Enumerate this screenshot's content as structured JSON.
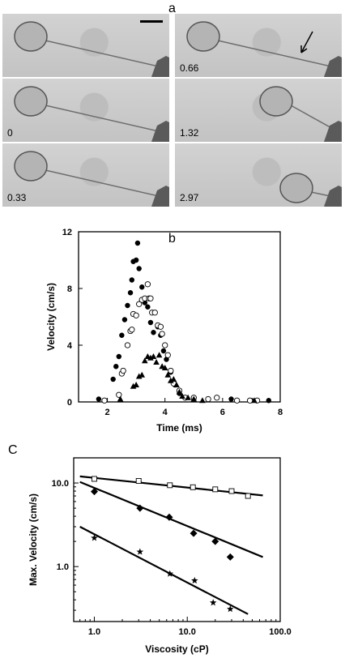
{
  "panel_a": {
    "label": "a",
    "frames_left": [
      "",
      "0",
      "0.33"
    ],
    "frames_right": [
      "0.66",
      "1.32",
      "2.97"
    ]
  },
  "panel_b": {
    "label": "b"
  },
  "panel_c": {
    "label": "C"
  },
  "chart_data": [
    {
      "type": "scatter",
      "title": "",
      "xlabel": "Time (ms)",
      "ylabel": "Velocity (cm/s)",
      "xlim": [
        1,
        8
      ],
      "ylim": [
        0,
        12
      ],
      "xticks": [
        2,
        4,
        6,
        8
      ],
      "yticks": [
        0,
        4,
        8,
        12
      ],
      "grid": false,
      "series": [
        {
          "marker": "filled-circle",
          "points": [
            [
              1.7,
              0.2
            ],
            [
              2.2,
              1.6
            ],
            [
              2.3,
              2.5
            ],
            [
              2.4,
              3.2
            ],
            [
              2.5,
              4.7
            ],
            [
              2.6,
              5.8
            ],
            [
              2.7,
              6.8
            ],
            [
              2.8,
              7.7
            ],
            [
              2.85,
              8.6
            ],
            [
              2.9,
              9.9
            ],
            [
              3.0,
              10.0
            ],
            [
              3.05,
              11.2
            ],
            [
              3.1,
              9.4
            ],
            [
              3.2,
              8.1
            ],
            [
              3.3,
              7.0
            ],
            [
              3.4,
              6.7
            ],
            [
              3.5,
              5.6
            ],
            [
              3.6,
              4.9
            ],
            [
              3.75,
              5.3
            ],
            [
              3.85,
              4.7
            ],
            [
              3.95,
              3.6
            ],
            [
              4.05,
              3.0
            ],
            [
              4.2,
              2.1
            ],
            [
              4.35,
              1.2
            ],
            [
              4.5,
              0.6
            ],
            [
              4.7,
              0.3
            ],
            [
              5.0,
              0.2
            ],
            [
              5.5,
              0.2
            ],
            [
              6.3,
              0.2
            ],
            [
              7.0,
              0.1
            ],
            [
              7.6,
              0.1
            ]
          ]
        },
        {
          "marker": "open-circle",
          "points": [
            [
              1.9,
              0.1
            ],
            [
              2.4,
              0.5
            ],
            [
              2.5,
              2.0
            ],
            [
              2.55,
              2.2
            ],
            [
              2.7,
              4.0
            ],
            [
              2.8,
              5.0
            ],
            [
              2.85,
              5.1
            ],
            [
              2.9,
              6.2
            ],
            [
              3.0,
              6.1
            ],
            [
              3.1,
              6.9
            ],
            [
              3.2,
              7.2
            ],
            [
              3.3,
              7.3
            ],
            [
              3.4,
              8.3
            ],
            [
              3.45,
              7.3
            ],
            [
              3.5,
              7.3
            ],
            [
              3.55,
              6.3
            ],
            [
              3.65,
              6.3
            ],
            [
              3.75,
              5.4
            ],
            [
              3.85,
              5.3
            ],
            [
              3.9,
              4.8
            ],
            [
              4.0,
              4.0
            ],
            [
              4.1,
              3.3
            ],
            [
              4.2,
              2.2
            ],
            [
              4.3,
              1.3
            ],
            [
              4.5,
              0.8
            ],
            [
              4.7,
              0.3
            ],
            [
              5.0,
              0.3
            ],
            [
              5.5,
              0.2
            ],
            [
              5.8,
              0.3
            ],
            [
              6.5,
              0.1
            ],
            [
              6.95,
              0.1
            ],
            [
              7.2,
              0.1
            ]
          ]
        },
        {
          "marker": "filled-triangle",
          "points": [
            [
              2.45,
              0.2
            ],
            [
              2.9,
              1.1
            ],
            [
              3.0,
              1.2
            ],
            [
              3.1,
              1.8
            ],
            [
              3.2,
              1.9
            ],
            [
              3.3,
              2.9
            ],
            [
              3.4,
              3.2
            ],
            [
              3.5,
              3.1
            ],
            [
              3.6,
              3.2
            ],
            [
              3.7,
              2.8
            ],
            [
              3.8,
              3.3
            ],
            [
              3.9,
              2.5
            ],
            [
              4.0,
              2.4
            ],
            [
              4.1,
              1.9
            ],
            [
              4.2,
              1.5
            ],
            [
              4.3,
              1.6
            ],
            [
              4.4,
              1.2
            ],
            [
              4.5,
              0.7
            ],
            [
              4.6,
              0.4
            ],
            [
              4.8,
              0.3
            ],
            [
              5.0,
              0.2
            ],
            [
              5.3,
              0.1
            ],
            [
              7.1,
              0.1
            ]
          ]
        }
      ]
    },
    {
      "type": "scatter",
      "title": "",
      "xlabel": "Viscosity (cP)",
      "ylabel": "Max. Velocity (cm/s)",
      "xscale": "log",
      "yscale": "log",
      "xlim": [
        0.6,
        100
      ],
      "ylim": [
        0.22,
        20
      ],
      "xtick_labels": [
        "1.0",
        "10.0",
        "100.0"
      ],
      "ytick_labels": [
        "1.0",
        "10.0"
      ],
      "grid": false,
      "series": [
        {
          "marker": "open-square",
          "points": [
            [
              1.0,
              11.2
            ],
            [
              3.0,
              10.6
            ],
            [
              6.5,
              9.4
            ],
            [
              11.5,
              8.9
            ],
            [
              20,
              8.4
            ],
            [
              30,
              8.0
            ],
            [
              45,
              7.0
            ]
          ],
          "fit_line": [
            [
              0.7,
              12.0
            ],
            [
              65,
              7.1
            ]
          ]
        },
        {
          "marker": "filled-diamond",
          "points": [
            [
              1.0,
              7.9
            ],
            [
              3.1,
              5.0
            ],
            [
              6.4,
              3.9
            ],
            [
              11.7,
              2.5
            ],
            [
              20,
              2.0
            ],
            [
              29,
              1.3
            ]
          ],
          "fit_line": [
            [
              0.7,
              10.3
            ],
            [
              65,
              1.3
            ]
          ]
        },
        {
          "marker": "filled-star",
          "points": [
            [
              1.0,
              2.2
            ],
            [
              3.1,
              1.5
            ],
            [
              6.5,
              0.82
            ],
            [
              12,
              0.68
            ],
            [
              19,
              0.37
            ],
            [
              29,
              0.31
            ]
          ],
          "fit_line": [
            [
              0.7,
              3.0
            ],
            [
              45,
              0.27
            ]
          ]
        }
      ]
    }
  ]
}
